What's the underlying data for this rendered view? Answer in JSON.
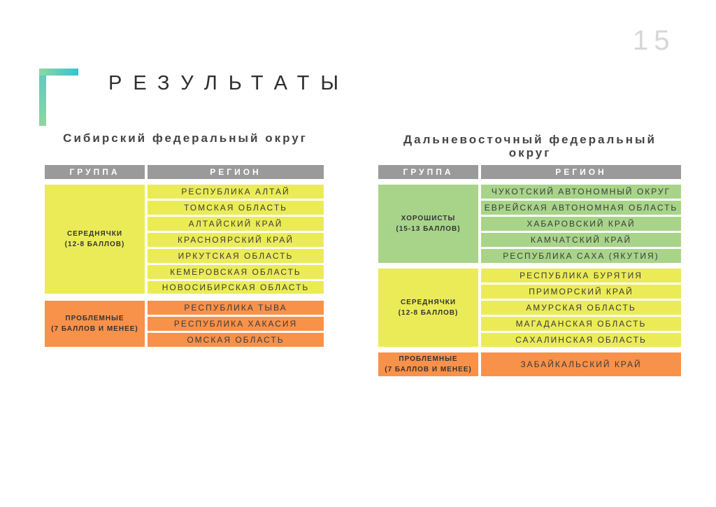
{
  "page_number": "15",
  "title": "РЕЗУЛЬТАТЫ",
  "colors": {
    "yellow": "#ebeb58",
    "orange": "#f8914a",
    "green": "#a8d48a",
    "header": "#9a9a9a"
  },
  "header": {
    "group": "ГРУППА",
    "region": "РЕГИОН"
  },
  "siberia": {
    "title": "Сибирский федеральный округ",
    "groups": [
      {
        "name_line1": "СЕРЕДНЯЧКИ",
        "name_line2": "(12-8 БАЛЛОВ)",
        "color": "yellow",
        "regions": [
          "РЕСПУБЛИКА АЛТАЙ",
          "ТОМСКАЯ ОБЛАСТЬ",
          "АЛТАЙСКИЙ КРАЙ",
          "КРАСНОЯРСКИЙ КРАЙ",
          "ИРКУТСКАЯ ОБЛАСТЬ",
          "КЕМЕРОВСКАЯ ОБЛАСТЬ",
          "НОВОСИБИРСКАЯ ОБЛАСТЬ"
        ]
      },
      {
        "name_line1": "ПРОБЛЕМНЫЕ",
        "name_line2": "(7 БАЛЛОВ И МЕНЕЕ)",
        "color": "orange",
        "regions": [
          "РЕСПУБЛИКА ТЫВА",
          "РЕСПУБЛИКА ХАКАСИЯ",
          "ОМСКАЯ ОБЛАСТЬ"
        ]
      }
    ]
  },
  "fareast": {
    "title_line1": "Дальневосточный федеральный",
    "title_line2": "округ",
    "groups": [
      {
        "name_line1": "ХОРОШИСТЫ",
        "name_line2": "(15-13 БАЛЛОВ)",
        "color": "green",
        "regions": [
          "ЧУКОТСКИЙ АВТОНОМНЫЙ ОКРУГ",
          "ЕВРЕЙСКАЯ АВТОНОМНАЯ ОБЛАСТЬ",
          "ХАБАРОВСКИЙ КРАЙ",
          "КАМЧАТСКИЙ КРАЙ",
          "РЕСПУБЛИКА САХА (ЯКУТИЯ)"
        ]
      },
      {
        "name_line1": "СЕРЕДНЯЧКИ",
        "name_line2": "(12-8 БАЛЛОВ)",
        "color": "yellow",
        "regions": [
          "РЕСПУБЛИКА БУРЯТИЯ",
          "ПРИМОРСКИЙ КРАЙ",
          "АМУРСКАЯ ОБЛАСТЬ",
          "МАГАДАНСКАЯ ОБЛАСТЬ",
          "САХАЛИНСКАЯ ОБЛАСТЬ"
        ]
      },
      {
        "name_line1": "ПРОБЛЕМНЫЕ",
        "name_line2": "(7 БАЛЛОВ И МЕНЕЕ)",
        "color": "orange",
        "regions": [
          "ЗАБАЙКАЛЬСКИЙ КРАЙ"
        ]
      }
    ]
  }
}
